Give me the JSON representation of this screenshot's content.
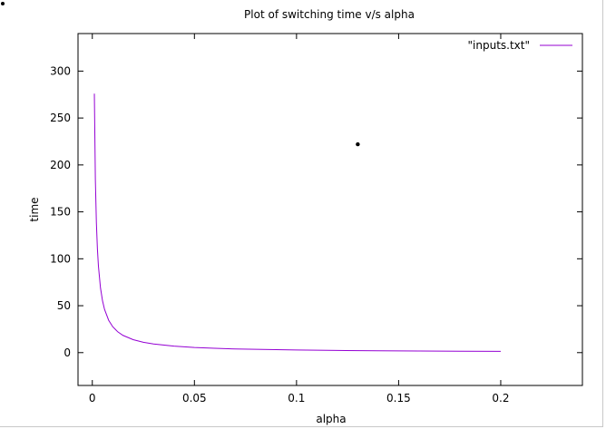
{
  "chart_data": {
    "type": "line",
    "title": "Plot of switching time v/s alpha",
    "xlabel": "alpha",
    "ylabel": "time",
    "xlim": [
      -0.007,
      0.24
    ],
    "ylim": [
      -35,
      340
    ],
    "xticks": [
      0,
      0.05,
      0.1,
      0.15,
      0.2
    ],
    "xtick_labels": [
      "0",
      "0.05",
      "0.1",
      "0.15",
      "0.2"
    ],
    "yticks": [
      0,
      50,
      100,
      150,
      200,
      250,
      300
    ],
    "ytick_labels": [
      "0",
      "50",
      "100",
      "150",
      "200",
      "250",
      "300"
    ],
    "grid": false,
    "legend": {
      "position": "top-right"
    },
    "series": [
      {
        "name": "\"inputs.txt\"",
        "color": "#9400d3",
        "x": [
          0.001,
          0.0015,
          0.002,
          0.0025,
          0.003,
          0.004,
          0.005,
          0.006,
          0.008,
          0.01,
          0.0125,
          0.015,
          0.02,
          0.025,
          0.03,
          0.04,
          0.05,
          0.06,
          0.07,
          0.08,
          0.1,
          0.12,
          0.14,
          0.16,
          0.18,
          0.2
        ],
        "y": [
          276,
          184,
          138,
          110.4,
          92,
          69,
          55.2,
          46,
          34.5,
          27.6,
          22.1,
          18.4,
          13.8,
          11,
          9.2,
          6.9,
          5.5,
          4.6,
          3.9,
          3.5,
          2.8,
          2.3,
          2,
          1.7,
          1.5,
          1.4
        ]
      }
    ],
    "annotations": [
      {
        "type": "point",
        "x": 0.13,
        "y": 222
      }
    ]
  }
}
